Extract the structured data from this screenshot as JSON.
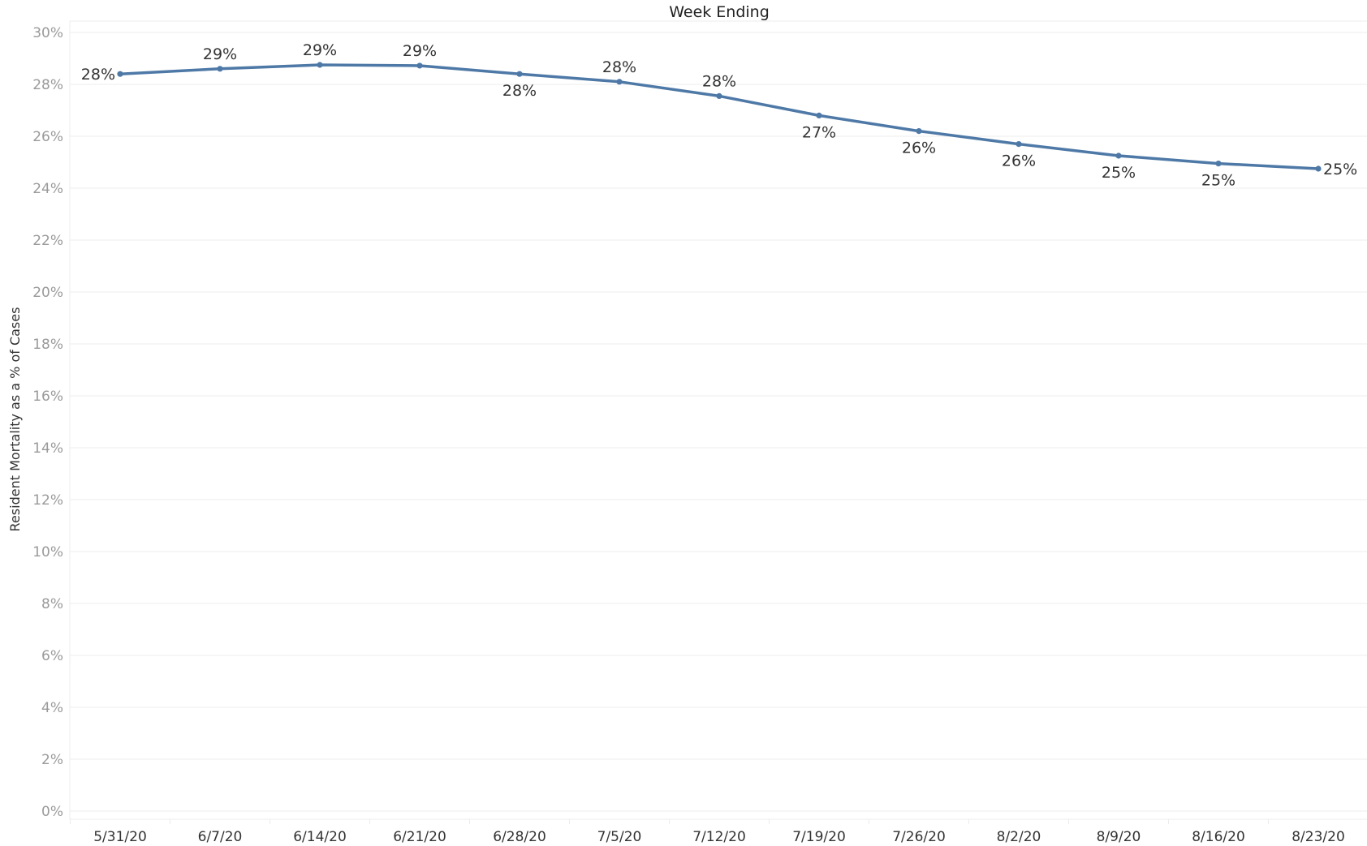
{
  "chart_data": {
    "type": "line",
    "xlabel": "Week Ending",
    "ylabel": "Resident Mortality as a % of Cases",
    "categories": [
      "5/31/20",
      "6/7/20",
      "6/14/20",
      "6/21/20",
      "6/28/20",
      "7/5/20",
      "7/12/20",
      "7/19/20",
      "7/26/20",
      "8/2/20",
      "8/9/20",
      "8/16/20",
      "8/23/20"
    ],
    "series": [
      {
        "values": [
          28.4,
          28.6,
          28.75,
          28.72,
          28.4,
          28.1,
          27.55,
          26.8,
          26.2,
          25.7,
          25.25,
          24.95,
          24.75
        ],
        "labels": [
          "28%",
          "29%",
          "29%",
          "29%",
          "28%",
          "28%",
          "28%",
          "27%",
          "26%",
          "26%",
          "25%",
          "25%",
          "25%"
        ],
        "label_positions": [
          "left",
          "above",
          "above",
          "above",
          "below",
          "above",
          "above",
          "below",
          "below",
          "below",
          "below",
          "below",
          "right"
        ]
      }
    ],
    "ylim": [
      0,
      30
    ],
    "yticks": [
      0,
      2,
      4,
      6,
      8,
      10,
      12,
      14,
      16,
      18,
      20,
      22,
      24,
      26,
      28,
      30
    ],
    "ytick_labels": [
      "0%",
      "2%",
      "4%",
      "6%",
      "8%",
      "10%",
      "12%",
      "14%",
      "16%",
      "18%",
      "20%",
      "22%",
      "24%",
      "26%",
      "28%",
      "30%"
    ],
    "grid": true,
    "line_color": "#4e79a7",
    "legend": "none"
  }
}
